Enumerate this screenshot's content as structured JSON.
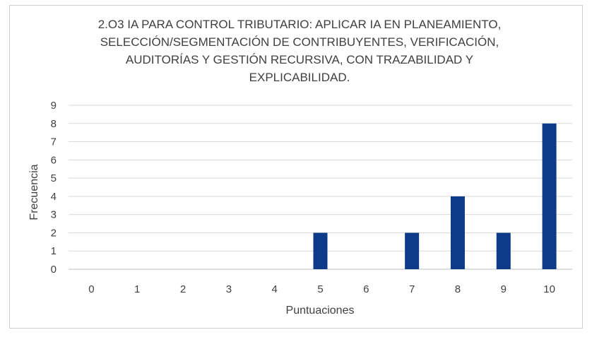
{
  "chart_data": {
    "type": "bar",
    "title": "2.O3 IA PARA CONTROL TRIBUTARIO: APLICAR IA EN PLANEAMIENTO, SELECCIÓN/SEGMENTACIÓN DE CONTRIBUYENTES, VERIFICACIÓN, AUDITORÍAS Y GESTIÓN RECURSIVA, CON TRAZABILIDAD Y EXPLICABILIDAD.",
    "xlabel": "Puntuaciones",
    "ylabel": "Frecuencia",
    "categories": [
      "0",
      "1",
      "2",
      "3",
      "4",
      "5",
      "6",
      "7",
      "8",
      "9",
      "10"
    ],
    "values": [
      0,
      0,
      0,
      0,
      0,
      2,
      0,
      2,
      4,
      2,
      8
    ],
    "ylim": [
      0,
      9
    ],
    "yticks": [
      0,
      1,
      2,
      3,
      4,
      5,
      6,
      7,
      8,
      9
    ],
    "grid": true,
    "legend": "none",
    "colors": {
      "bar": "#0e3a8a",
      "grid": "#d9d9d9",
      "axis": "#bfbfbf",
      "text": "#404040"
    }
  }
}
